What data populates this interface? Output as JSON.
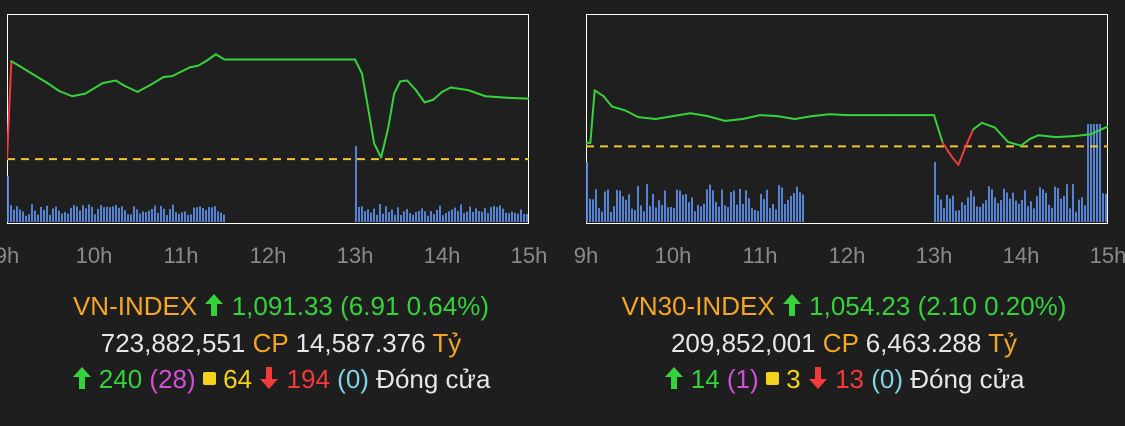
{
  "colors": {
    "background": "#1e1e1e",
    "plot_bg": "#ffffff",
    "up": "#36d23c",
    "down": "#f23a3a",
    "reference": "#f2c230",
    "volume": "#5b8ee6",
    "title": "#f5a623",
    "ceiling": "#d24fd8",
    "floor": "#7fd3e6",
    "axis_text": "#8a8a8a"
  },
  "panels": [
    {
      "name": "VN-INDEX",
      "arrow": "up-arrow-icon",
      "value": "1,091.33",
      "change": "(6.91 0.64%)",
      "volume": "723,882,551",
      "cp_label": "CP",
      "turnover": "14,587.376",
      "unit": "Tỷ",
      "advancers": "240",
      "ceiling": "(28)",
      "unchanged": "64",
      "decliners": "194",
      "floor": "(0)",
      "status": "Đóng cửa"
    },
    {
      "name": "VN30-INDEX",
      "arrow": "up-arrow-icon",
      "value": "1,054.23",
      "change": "(2.10 0.20%)",
      "volume": "209,852,001",
      "cp_label": "CP",
      "turnover": "6,463.288",
      "unit": "Tỷ",
      "advancers": "14",
      "ceiling": "(1)",
      "unchanged": "3",
      "decliners": "13",
      "floor": "(0)",
      "status": "Đóng cửa"
    }
  ],
  "chart_data": [
    {
      "type": "line",
      "title": "VN-INDEX",
      "x_ticks": [
        "9h",
        "10h",
        "11h",
        "12h",
        "13h",
        "14h",
        "15h"
      ],
      "xlim": [
        9,
        15
      ],
      "ylim": [
        1077,
        1101
      ],
      "reference": 1084.42,
      "series": [
        {
          "x": [
            9.0,
            9.05,
            9.12,
            9.25,
            9.45,
            9.6,
            9.75,
            9.9,
            10.0,
            10.1,
            10.25,
            10.35,
            10.5,
            10.65,
            10.8,
            10.9,
            11.0,
            11.1,
            11.2,
            11.3,
            11.4,
            11.5,
            12.0,
            12.5,
            13.0,
            13.08,
            13.15,
            13.22,
            13.3,
            13.38,
            13.45,
            13.52,
            13.6,
            13.7,
            13.8,
            13.9,
            14.0,
            14.1,
            14.3,
            14.5,
            14.8,
            15.0
          ],
          "y": [
            1084.4,
            1095.6,
            1095.2,
            1094.4,
            1093.2,
            1092.2,
            1091.6,
            1091.9,
            1092.5,
            1093.1,
            1093.4,
            1092.8,
            1092.1,
            1092.9,
            1093.8,
            1093.9,
            1094.4,
            1094.9,
            1095.1,
            1095.7,
            1096.4,
            1095.8,
            1095.8,
            1095.8,
            1095.8,
            1094.2,
            1090.3,
            1086.2,
            1084.6,
            1087.9,
            1091.9,
            1093.3,
            1093.4,
            1092.3,
            1090.9,
            1091.2,
            1092.1,
            1092.6,
            1092.3,
            1091.6,
            1091.4,
            1091.33
          ]
        }
      ]
    },
    {
      "type": "line",
      "title": "VN30-INDEX",
      "x_ticks": [
        "9h",
        "10h",
        "11h",
        "12h",
        "13h",
        "14h",
        "15h"
      ],
      "xlim": [
        9,
        15
      ],
      "ylim": [
        1044,
        1066
      ],
      "reference": 1052.13,
      "series": [
        {
          "x": [
            9.0,
            9.05,
            9.1,
            9.2,
            9.3,
            9.45,
            9.6,
            9.8,
            10.0,
            10.2,
            10.4,
            10.6,
            10.8,
            11.0,
            11.2,
            11.4,
            11.6,
            11.8,
            12.0,
            12.5,
            13.0,
            13.1,
            13.2,
            13.28,
            13.35,
            13.45,
            13.55,
            13.7,
            13.85,
            14.0,
            14.1,
            14.2,
            14.4,
            14.6,
            14.8,
            15.0
          ],
          "y": [
            1052.5,
            1052.5,
            1058.0,
            1057.4,
            1056.3,
            1055.9,
            1055.2,
            1055.0,
            1055.3,
            1055.6,
            1055.3,
            1054.8,
            1055.0,
            1055.4,
            1055.3,
            1055.0,
            1055.3,
            1055.5,
            1055.4,
            1055.4,
            1055.4,
            1052.5,
            1051.1,
            1050.2,
            1051.8,
            1053.9,
            1054.6,
            1054.1,
            1052.6,
            1052.2,
            1052.9,
            1053.3,
            1053.1,
            1053.2,
            1053.4,
            1054.23
          ]
        }
      ]
    }
  ]
}
